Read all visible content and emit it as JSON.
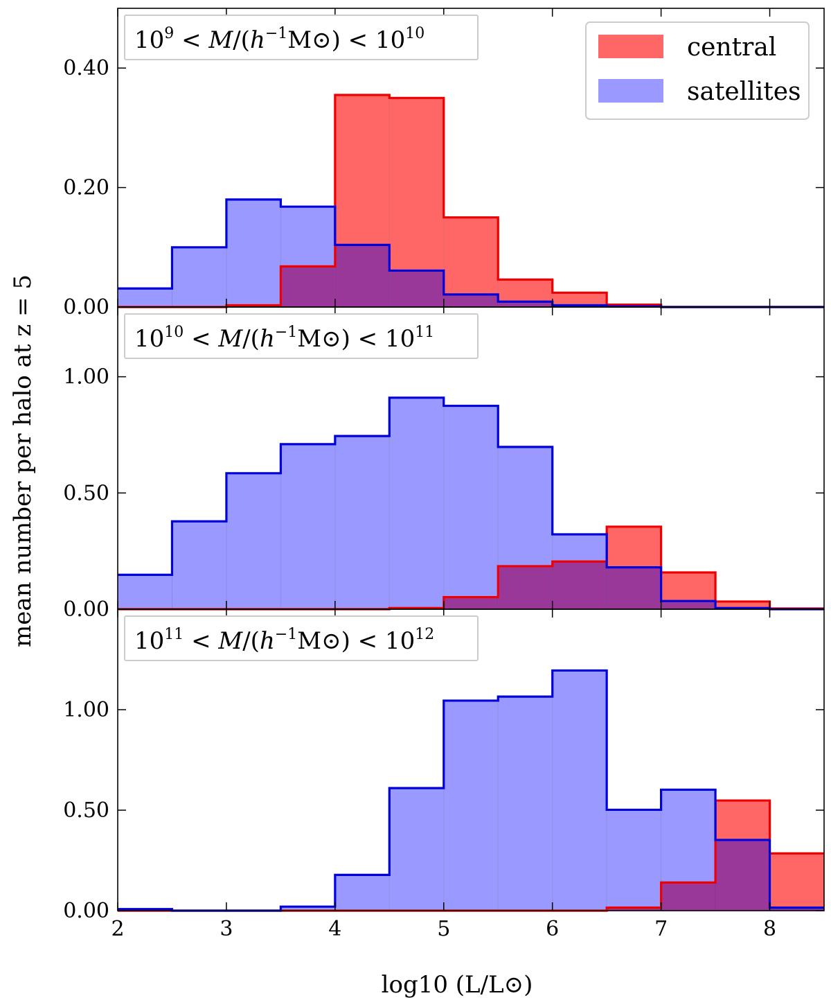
{
  "chart_data": {
    "type": "bar",
    "histogram": true,
    "colors": {
      "central_fill": "#ff6666",
      "central_edge": "#ee0000",
      "satellites_fill": "#9999ff",
      "satellites_edge": "#0000dd",
      "overlap_fill": "#9a389a"
    },
    "xlabel": "log10 (L/L⊙)",
    "ylabel": "mean number per halo at z = 5",
    "xlim": [
      2,
      8.5
    ],
    "x_ticks": [
      2,
      3,
      4,
      5,
      6,
      7,
      8
    ],
    "x_tick_labels": [
      "2",
      "3",
      "4",
      "5",
      "6",
      "7",
      "8"
    ],
    "legend": {
      "placement": "top-right",
      "entries": [
        {
          "name": "central",
          "color": "#ff6666"
        },
        {
          "name": "satellites",
          "color": "#9999ff"
        }
      ]
    },
    "bin_edges": [
      2.0,
      2.5,
      3.0,
      3.5,
      4.0,
      4.5,
      5.0,
      5.5,
      6.0,
      6.5,
      7.0,
      7.5,
      8.0,
      8.5
    ],
    "panels": [
      {
        "label": "10^9 < M/(h^-1 M⊙) < 10^10",
        "label_parts": {
          "a": "10",
          "a_exp": "9",
          "mid": " < M/(h",
          "h_exp": "−1",
          "m": "M",
          "sun": "⊙",
          "close": ") < ",
          "b": "10",
          "b_exp": "10"
        },
        "ylim": [
          0,
          0.5
        ],
        "y_ticks": [
          0,
          0.2,
          0.4
        ],
        "y_tick_labels": [
          "0.00",
          "0.20",
          "0.40"
        ],
        "series": [
          {
            "name": "central",
            "values": [
              0.0,
              0.0,
              0.003,
              0.068,
              0.355,
              0.35,
              0.15,
              0.046,
              0.024,
              0.004,
              0.0,
              0.0,
              0.0
            ]
          },
          {
            "name": "satellites",
            "values": [
              0.031,
              0.1,
              0.18,
              0.168,
              0.104,
              0.061,
              0.021,
              0.009,
              0.003,
              0.001,
              0.0,
              0.0,
              0.0
            ]
          }
        ]
      },
      {
        "label": "10^10 < M/(h^-1 M⊙) < 10^11",
        "label_parts": {
          "a": "10",
          "a_exp": "10",
          "mid": " < M/(h",
          "h_exp": "−1",
          "m": "M",
          "sun": "⊙",
          "close": ") < ",
          "b": "10",
          "b_exp": "11"
        },
        "ylim": [
          0,
          1.3
        ],
        "y_ticks": [
          0,
          0.5,
          1.0
        ],
        "y_tick_labels": [
          "0.00",
          "0.50",
          "1.00"
        ],
        "series": [
          {
            "name": "central",
            "values": [
              0.0,
              0.0,
              0.0,
              0.0,
              0.0,
              0.005,
              0.052,
              0.185,
              0.205,
              0.355,
              0.158,
              0.033,
              0.003
            ]
          },
          {
            "name": "satellites",
            "values": [
              0.148,
              0.378,
              0.585,
              0.71,
              0.745,
              0.91,
              0.875,
              0.698,
              0.322,
              0.18,
              0.035,
              0.005,
              0.0
            ]
          }
        ]
      },
      {
        "label": "10^11 < M/(h^-1 M⊙) < 10^12",
        "label_parts": {
          "a": "10",
          "a_exp": "11",
          "mid": " < M/(h",
          "h_exp": "−1",
          "m": "M",
          "sun": "⊙",
          "close": ") < ",
          "b": "10",
          "b_exp": "12"
        },
        "ylim": [
          0,
          1.5
        ],
        "y_ticks": [
          0,
          0.5,
          1.0
        ],
        "y_tick_labels": [
          "0.00",
          "0.50",
          "1.00"
        ],
        "series": [
          {
            "name": "central",
            "values": [
              0.0,
              0.0,
              0.0,
              0.0,
              0.0,
              0.0,
              0.0,
              0.0,
              0.0,
              0.015,
              0.14,
              0.548,
              0.285
            ]
          },
          {
            "name": "satellites",
            "values": [
              0.008,
              0.0,
              0.0,
              0.02,
              0.178,
              0.61,
              1.045,
              1.065,
              1.195,
              0.502,
              0.602,
              0.352,
              0.015
            ]
          }
        ]
      }
    ]
  }
}
